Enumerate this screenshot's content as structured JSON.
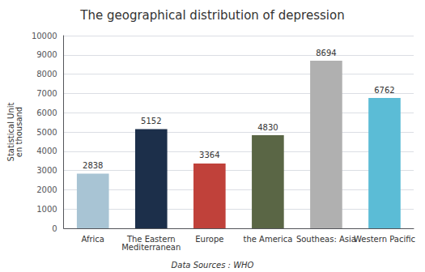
{
  "chart_data": {
    "type": "bar",
    "title": "The geographical distribution of depression",
    "categories": [
      "Africa",
      "The Eastern\nMediterranean",
      "Europe",
      "the America",
      "Southeas: Asia",
      "Western Pacific"
    ],
    "values": [
      2838,
      5152,
      3364,
      4830,
      8694,
      6762
    ],
    "colors": [
      "#a8c4d4",
      "#1c2f4a",
      "#c0413a",
      "#5a6645",
      "#b0b0b0",
      "#5bbcd6"
    ],
    "ylabel": "Statistical Unit\nen thousand",
    "annotation": "Data Sources : WHO",
    "ylim": [
      0,
      10000
    ],
    "yticks": [
      0,
      1000,
      2000,
      3000,
      4000,
      5000,
      6000,
      7000,
      8000,
      9000,
      10000
    ],
    "grid": true,
    "data_labels": true
  }
}
